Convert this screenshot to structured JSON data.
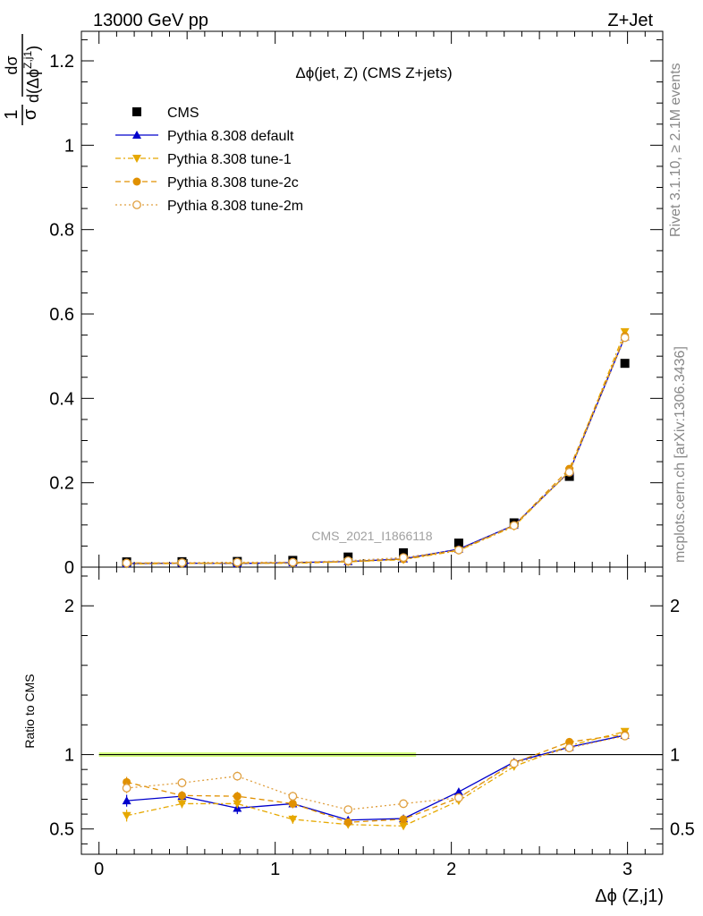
{
  "header": {
    "left": "13000 GeV pp",
    "right": "Z+Jet"
  },
  "plot_title": "Δϕ(jet, Z) (CMS Z+jets)",
  "watermark": "CMS_2021_I1866118",
  "side_text": {
    "rivet": "Rivet 3.1.10, ≥ 2.1M events",
    "mcplots": "mcplots.cern.ch [arXiv:1306.3436]"
  },
  "ylabel_main": {
    "one": "1",
    "sigma": "σ",
    "numerator": "dσ",
    "denominator": "d(Δϕ",
    "superscript": "Z,j1",
    "close": ")"
  },
  "ylabel_ratio": "Ratio to CMS",
  "xlabel": "Δϕ (Z,j1)",
  "chart_data": [
    {
      "type": "scatter",
      "panel": "main",
      "xlim": [
        -0.1,
        3.2
      ],
      "ylim": [
        0,
        1.27
      ],
      "yticks": [
        0,
        0.2,
        0.4,
        0.6,
        0.8,
        1,
        1.2
      ],
      "ytick_labels": [
        "0",
        "0.2",
        "0.4",
        "0.6",
        "0.8",
        "1",
        "1.2"
      ],
      "x": [
        0.157,
        0.471,
        0.785,
        1.1,
        1.414,
        1.728,
        2.042,
        2.356,
        2.67,
        2.985
      ],
      "legend": [
        "CMS",
        "Pythia 8.308 default",
        "Pythia 8.308 tune-1",
        "Pythia 8.308 tune-2c",
        "Pythia 8.308 tune-2m"
      ],
      "legend_position": "top-left",
      "series": [
        {
          "name": "CMS",
          "color": "#000000",
          "marker": "square",
          "line": "none",
          "values": [
            0.0125,
            0.013,
            0.0135,
            0.016,
            0.024,
            0.034,
            0.057,
            0.105,
            0.215,
            0.483
          ]
        },
        {
          "name": "Pythia 8.308 default",
          "color": "#0000cc",
          "marker": "triangle-up",
          "line": "solid",
          "values": [
            0.0086,
            0.0094,
            0.0086,
            0.0107,
            0.0133,
            0.0195,
            0.0428,
            0.0995,
            0.226,
            0.546
          ]
        },
        {
          "name": "Pythia 8.308 tune-1",
          "color": "#e6a800",
          "marker": "triangle-down",
          "line": "dashdot",
          "values": [
            0.0074,
            0.0087,
            0.009,
            0.009,
            0.0127,
            0.0176,
            0.0394,
            0.0965,
            0.227,
            0.558
          ]
        },
        {
          "name": "Pythia 8.308 tune-2c",
          "color": "#e09000",
          "marker": "circle",
          "line": "dashed",
          "values": [
            0.0102,
            0.0094,
            0.0097,
            0.0107,
            0.013,
            0.0191,
            0.0405,
            0.099,
            0.233,
            0.548
          ]
        },
        {
          "name": "Pythia 8.308 tune-2m",
          "color": "#e0a040",
          "marker": "circle-open",
          "line": "dotted",
          "values": [
            0.0097,
            0.0105,
            0.0115,
            0.0115,
            0.0151,
            0.0228,
            0.0406,
            0.0985,
            0.225,
            0.544
          ]
        }
      ]
    },
    {
      "type": "line",
      "panel": "ratio",
      "xlim": [
        -0.1,
        3.2
      ],
      "ylim": [
        0.33,
        2.26
      ],
      "yticks": [
        0.5,
        1,
        2
      ],
      "ytick_labels": [
        "0.5",
        "1",
        "2"
      ],
      "xticks": [
        0,
        1,
        2,
        3
      ],
      "xtick_labels": [
        "0",
        "1",
        "2",
        "3"
      ],
      "reference": 1,
      "band_xlim": [
        0.0,
        1.8
      ],
      "band_color": "#ccff66",
      "x": [
        0.157,
        0.471,
        0.785,
        1.1,
        1.414,
        1.728,
        2.042,
        2.356,
        2.67,
        2.985
      ],
      "series": [
        {
          "name": "Pythia 8.308 default",
          "color": "#0000cc",
          "marker": "triangle-up",
          "line": "solid",
          "values": [
            0.69,
            0.72,
            0.64,
            0.67,
            0.56,
            0.57,
            0.75,
            0.95,
            1.05,
            1.13
          ],
          "errors": [
            0.04,
            0.03,
            0.04,
            0.03,
            0.02,
            0.02,
            0.02,
            0.01,
            0.01,
            0.01
          ]
        },
        {
          "name": "Pythia 8.308 tune-1",
          "color": "#e6a800",
          "marker": "triangle-down",
          "line": "dashdot",
          "values": [
            0.59,
            0.67,
            0.67,
            0.565,
            0.53,
            0.52,
            0.69,
            0.92,
            1.06,
            1.155
          ],
          "errors": [
            0.04,
            0.03,
            0.03,
            0.03,
            0.02,
            0.02,
            0.02,
            0.01,
            0.01,
            0.01
          ]
        },
        {
          "name": "Pythia 8.308 tune-2c",
          "color": "#e09000",
          "marker": "circle",
          "line": "dashed",
          "values": [
            0.815,
            0.725,
            0.72,
            0.67,
            0.545,
            0.565,
            0.71,
            0.945,
            1.085,
            1.135
          ],
          "errors": [
            0.035,
            0.03,
            0.03,
            0.03,
            0.02,
            0.02,
            0.02,
            0.01,
            0.01,
            0.01
          ]
        },
        {
          "name": "Pythia 8.308 tune-2m",
          "color": "#e0a040",
          "marker": "circle-open",
          "line": "dotted",
          "values": [
            0.775,
            0.81,
            0.855,
            0.72,
            0.63,
            0.67,
            0.71,
            0.94,
            1.045,
            1.125
          ],
          "errors": [
            0.035,
            0.03,
            0.03,
            0.03,
            0.02,
            0.02,
            0.02,
            0.01,
            0.01,
            0.01
          ]
        }
      ]
    }
  ]
}
